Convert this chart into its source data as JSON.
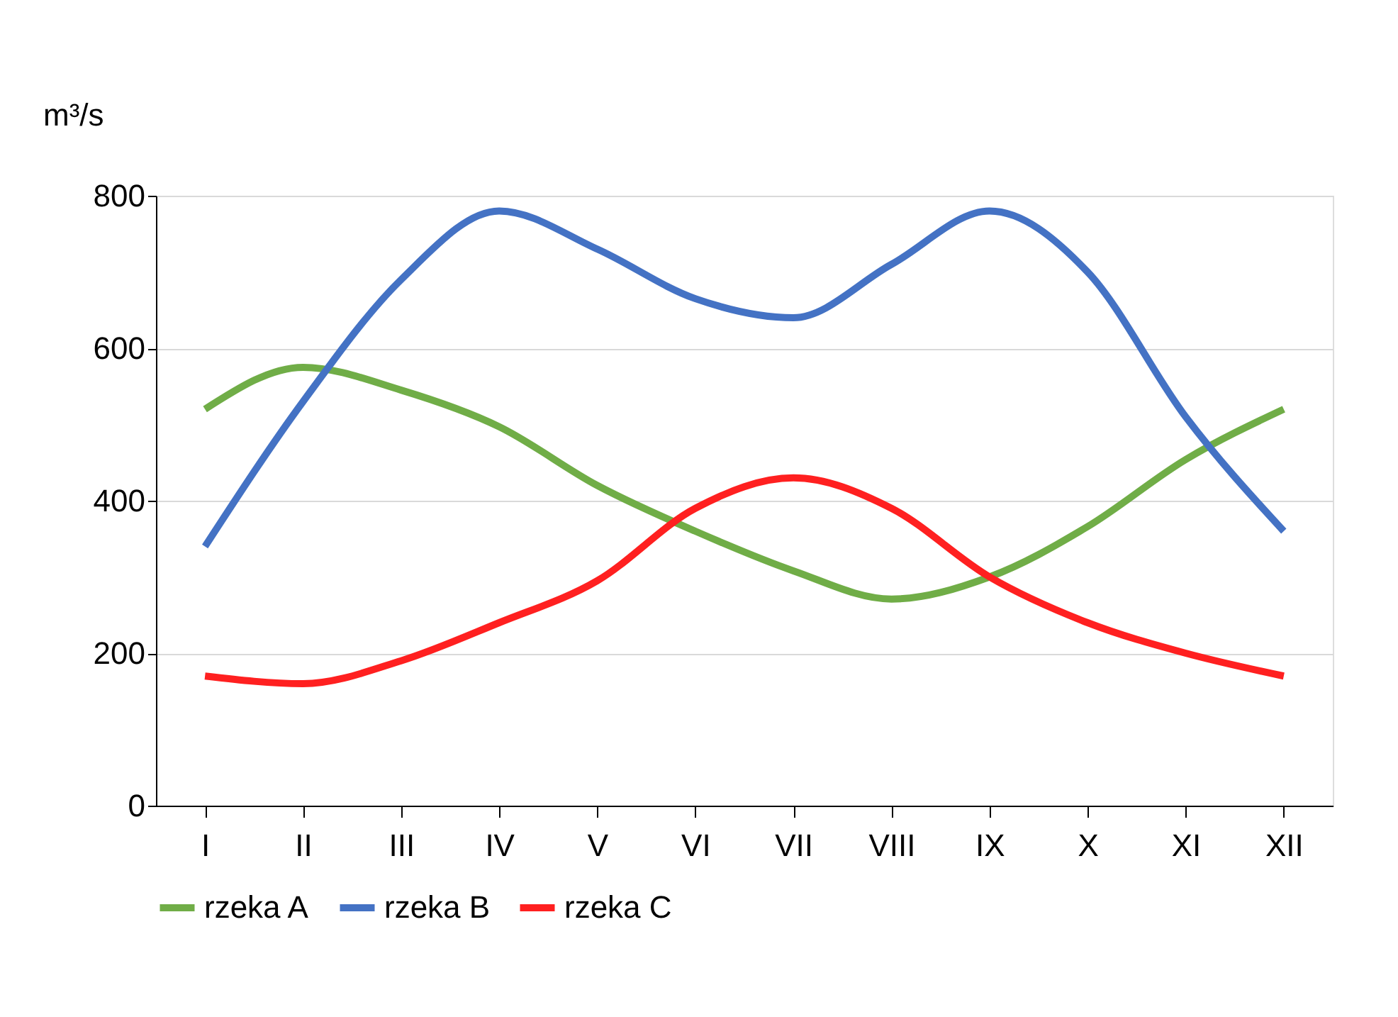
{
  "chart_data": {
    "type": "line",
    "ylabel": "m³/s",
    "categories": [
      "I",
      "II",
      "III",
      "IV",
      "V",
      "VI",
      "VII",
      "VIII",
      "IX",
      "X",
      "XI",
      "XII"
    ],
    "series": [
      {
        "name": "rzeka A",
        "color": "#70ad47",
        "values": [
          520,
          575,
          545,
          497,
          420,
          360,
          308,
          271,
          300,
          366,
          454,
          520
        ]
      },
      {
        "name": "rzeka B",
        "color": "#4472c4",
        "values": [
          340,
          530,
          690,
          780,
          730,
          665,
          640,
          710,
          780,
          700,
          510,
          360
        ]
      },
      {
        "name": "rzeka C",
        "color": "#ff2020",
        "values": [
          170,
          160,
          190,
          240,
          295,
          390,
          430,
          390,
          300,
          240,
          200,
          170
        ]
      }
    ],
    "ylim": [
      0,
      800
    ],
    "yticks": [
      0,
      200,
      400,
      600,
      800
    ],
    "grid": "y",
    "legend": "bottom",
    "marker": "none",
    "line_style": "solid"
  }
}
